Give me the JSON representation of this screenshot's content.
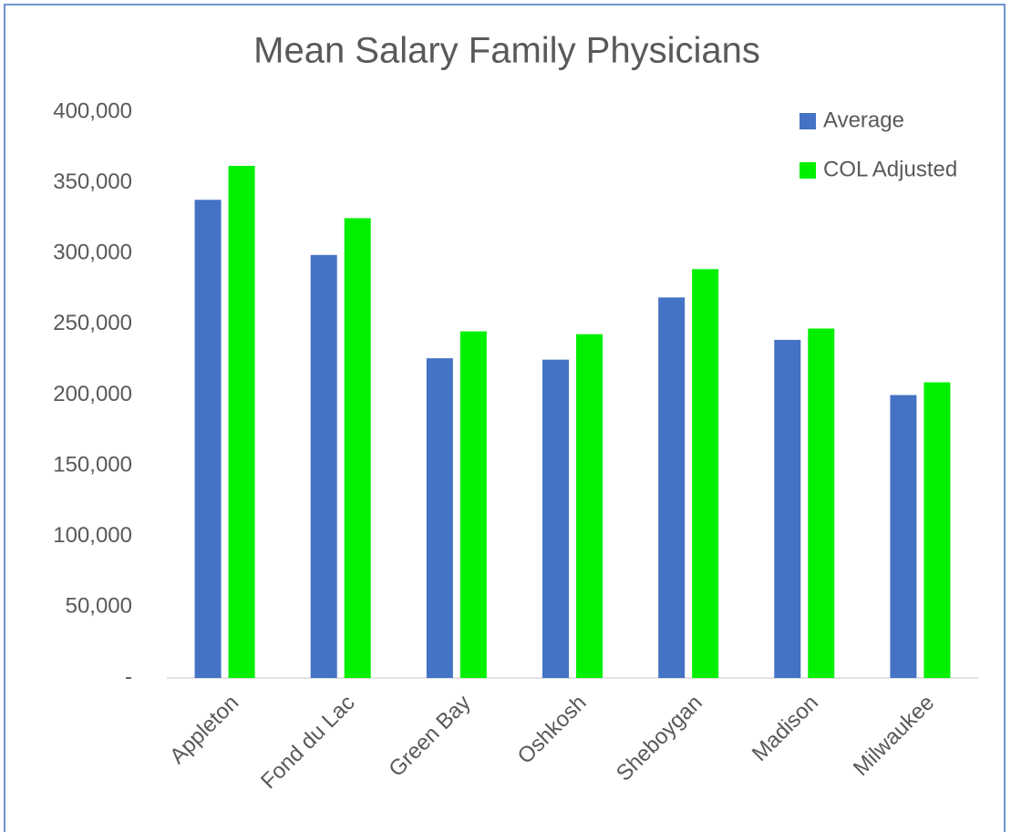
{
  "chart_data": {
    "type": "bar",
    "title": "Mean Salary Family Physicians",
    "categories": [
      "Appleton",
      "Fond du Lac",
      "Green Bay",
      "Oshkosh",
      "Sheboygan",
      "Madison",
      "Milwaukee"
    ],
    "series": [
      {
        "name": "Average",
        "color": "#4472c4",
        "values": [
          338000,
          299000,
          226000,
          225000,
          269000,
          239000,
          200000
        ]
      },
      {
        "name": "COL Adjusted",
        "color": "#00f000",
        "values": [
          362000,
          325000,
          245000,
          243000,
          289000,
          247000,
          209000
        ]
      }
    ],
    "ylim": [
      0,
      400000
    ],
    "yticks": [
      {
        "value": 0,
        "label": "-"
      },
      {
        "value": 50000,
        "label": "50,000"
      },
      {
        "value": 100000,
        "label": "100,000"
      },
      {
        "value": 150000,
        "label": "150,000"
      },
      {
        "value": 200000,
        "label": "200,000"
      },
      {
        "value": 250000,
        "label": "250,000"
      },
      {
        "value": 300000,
        "label": "300,000"
      },
      {
        "value": 350000,
        "label": "350,000"
      },
      {
        "value": 400000,
        "label": "400,000"
      }
    ],
    "grid": false,
    "legend": "top-right"
  }
}
